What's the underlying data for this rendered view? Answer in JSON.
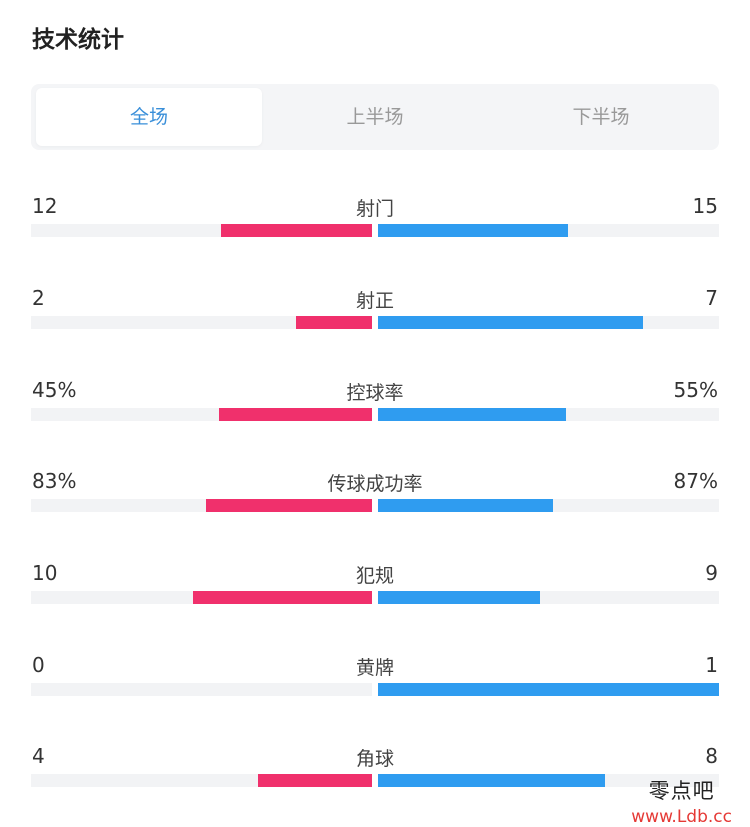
{
  "title": "技术统计",
  "tabs": [
    {
      "label": "全场",
      "active": true
    },
    {
      "label": "上半场",
      "active": false
    },
    {
      "label": "下半场",
      "active": false
    }
  ],
  "colors": {
    "home": "#f0306c",
    "away": "#2f9cf0",
    "track": "#f2f3f5",
    "active_tab": "#3a8fd9"
  },
  "stats": [
    {
      "label": "射门",
      "home": "12",
      "away": "15",
      "home_ratio": 0.444,
      "away_ratio": 0.556
    },
    {
      "label": "射正",
      "home": "2",
      "away": "7",
      "home_ratio": 0.222,
      "away_ratio": 0.778
    },
    {
      "label": "控球率",
      "home": "45%",
      "away": "55%",
      "home_ratio": 0.45,
      "away_ratio": 0.55
    },
    {
      "label": "传球成功率",
      "home": "83%",
      "away": "87%",
      "home_ratio": 0.488,
      "away_ratio": 0.512
    },
    {
      "label": "犯规",
      "home": "10",
      "away": "9",
      "home_ratio": 0.526,
      "away_ratio": 0.474
    },
    {
      "label": "黄牌",
      "home": "0",
      "away": "1",
      "home_ratio": 0.0,
      "away_ratio": 1.0
    },
    {
      "label": "角球",
      "home": "4",
      "away": "8",
      "home_ratio": 0.333,
      "away_ratio": 0.667
    }
  ],
  "watermark": {
    "name": "零点吧",
    "url": "www.Ldb.cc"
  }
}
